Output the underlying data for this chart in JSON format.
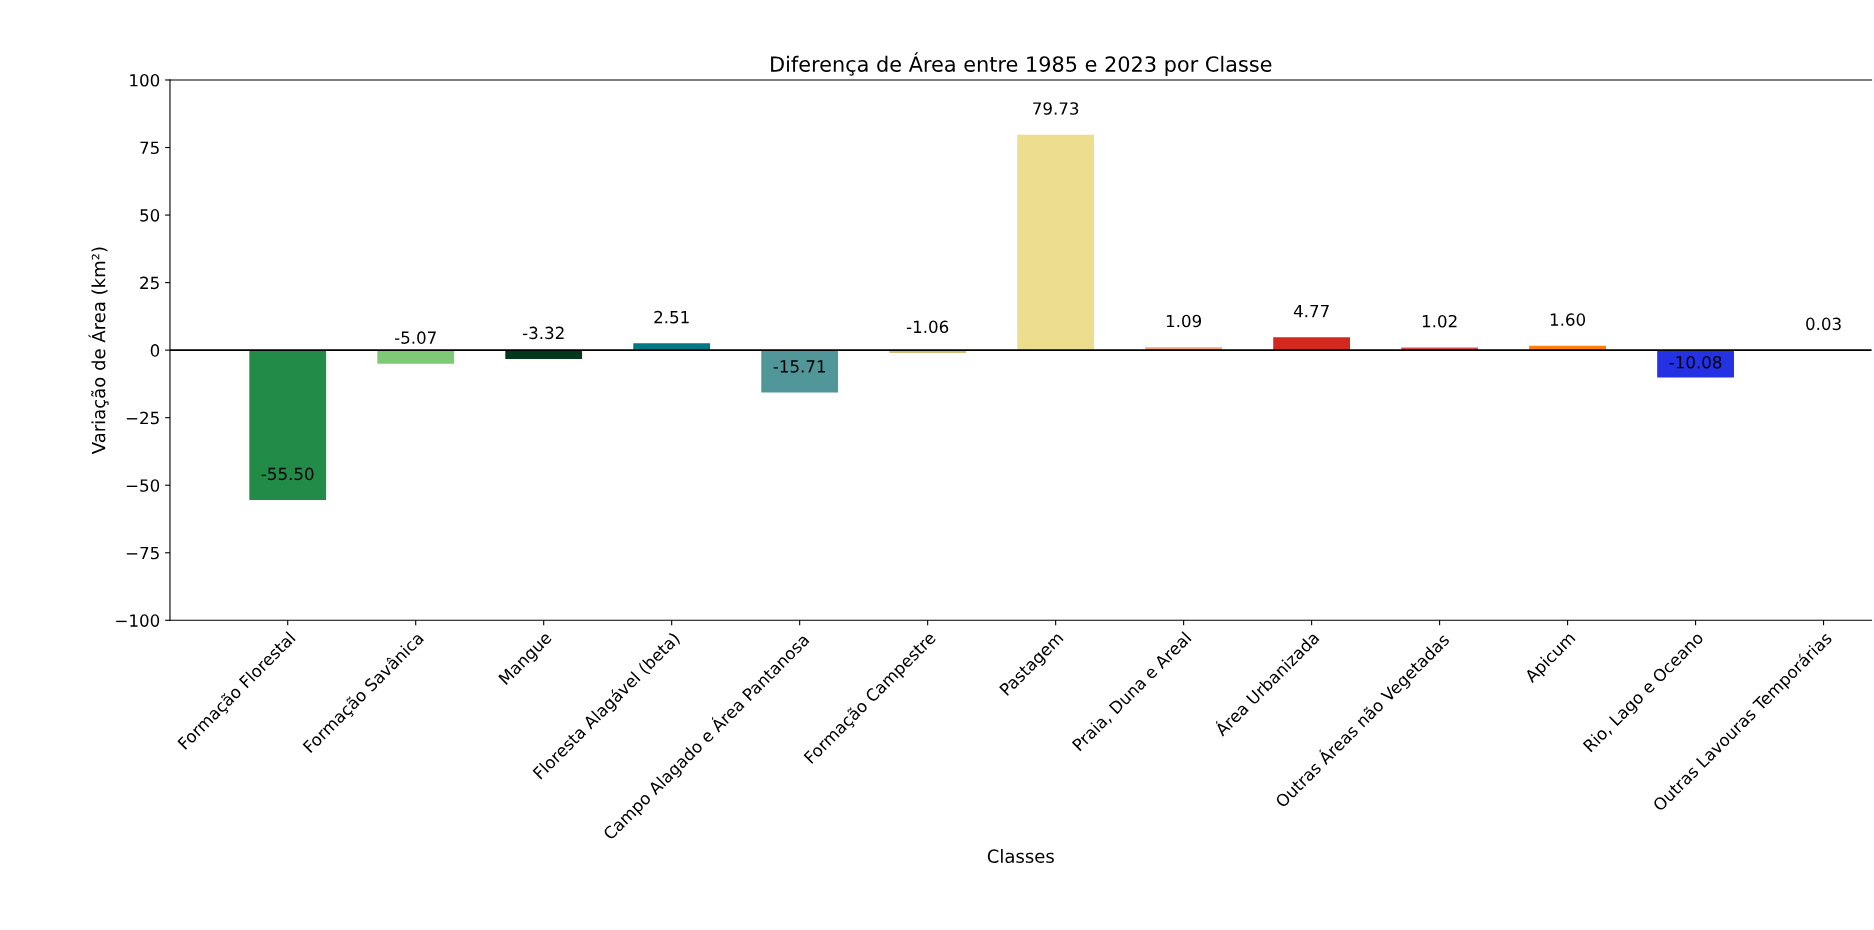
{
  "chart_data": {
    "type": "bar",
    "title": "Diferença de Área entre 1985 e 2023 por Classe",
    "xlabel": "Classes",
    "ylabel": "Variação de Área (km²)",
    "categories": [
      "Formação Florestal",
      "Formação Savânica",
      "Mangue",
      "Floresta Alagável (beta)",
      "Campo Alagado e Área Pantanosa",
      "Formação Campestre",
      "Pastagem",
      "Praia, Duna e Areal",
      "Área Urbanizada",
      "Outras Áreas não Vegetadas",
      "Apicum",
      "Rio, Lago e Oceano",
      "Outras Lavouras Temporárias"
    ],
    "values": [
      -55.5,
      -5.07,
      -3.32,
      2.51,
      -15.71,
      -1.06,
      79.73,
      1.09,
      4.77,
      1.02,
      1.6,
      -10.08,
      0.03
    ],
    "colors": [
      "#228b47",
      "#7dc975",
      "#04381d",
      "#007785",
      "#519799",
      "#d6bc74",
      "#eddd8e",
      "#f5a07a",
      "#d4271e",
      "#db4d4f",
      "#ff7f0e",
      "#2532e4",
      "#e787f8"
    ],
    "value_labels": [
      "-55.50",
      "-5.07",
      "-3.32",
      "2.51",
      "-15.71",
      "-1.06",
      "79.73",
      "1.09",
      "4.77",
      "1.02",
      "1.60",
      "-10.08",
      "0.03"
    ],
    "ylim": [
      -100,
      100
    ],
    "yticks": [
      {
        "value": -100,
        "label": "−100"
      },
      {
        "value": -75,
        "label": "−75"
      },
      {
        "value": -50,
        "label": "−50"
      },
      {
        "value": -25,
        "label": "−25"
      },
      0,
      25,
      50,
      75,
      100
    ],
    "ref_lines": [
      {
        "axis": "y",
        "value": 0,
        "color": "#000000",
        "line_style": "solid"
      }
    ],
    "grid": false
  }
}
